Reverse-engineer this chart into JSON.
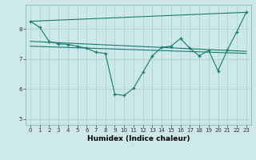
{
  "xlabel": "Humidex (Indice chaleur)",
  "bg_color": "#cce8e8",
  "line_color": "#1a7a6e",
  "grid_color": "#aacfcf",
  "xlim": [
    -0.5,
    23.5
  ],
  "ylim": [
    4.8,
    8.8
  ],
  "xticks": [
    0,
    1,
    2,
    3,
    4,
    5,
    6,
    7,
    8,
    9,
    10,
    11,
    12,
    13,
    14,
    15,
    16,
    17,
    18,
    19,
    20,
    21,
    22,
    23
  ],
  "yticks": [
    5,
    6,
    7,
    8
  ],
  "line1_x": [
    0,
    1,
    2,
    3,
    4,
    5,
    6,
    7,
    8,
    9,
    10,
    11,
    12,
    13,
    14,
    15,
    16,
    17,
    18,
    19,
    20,
    21,
    22,
    23
  ],
  "line1_y": [
    8.25,
    8.05,
    7.58,
    7.5,
    7.48,
    7.42,
    7.35,
    7.22,
    7.18,
    5.82,
    5.78,
    6.02,
    6.55,
    7.1,
    7.38,
    7.42,
    7.68,
    7.35,
    7.1,
    7.28,
    6.6,
    7.3,
    7.9,
    8.55
  ],
  "line2_x": [
    0,
    23
  ],
  "line2_y": [
    8.25,
    8.55
  ],
  "line3_x": [
    0,
    23
  ],
  "line3_y": [
    7.58,
    7.25
  ],
  "line4_x": [
    0,
    23
  ],
  "line4_y": [
    7.42,
    7.18
  ],
  "xlabel_fontsize": 6.5
}
